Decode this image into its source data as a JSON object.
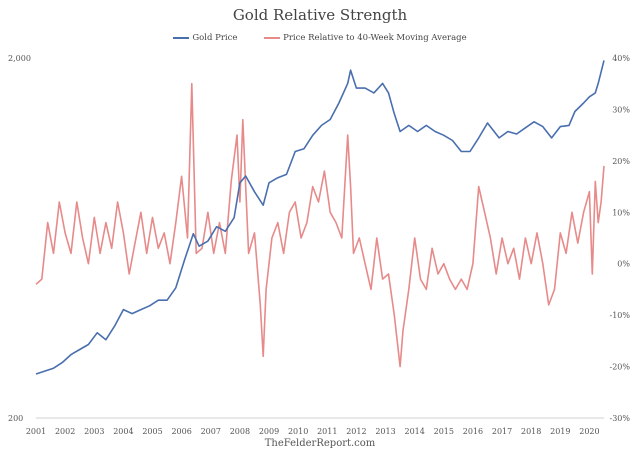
{
  "chart_data": {
    "type": "line",
    "title": "Gold Relative Strength",
    "footer": "TheFelderReport.com",
    "legend_position": "top",
    "x_ticks": [
      "2001",
      "2002",
      "2003",
      "2004",
      "2005",
      "2006",
      "2007",
      "2008",
      "2009",
      "2010",
      "2011",
      "2012",
      "2013",
      "2014",
      "2015",
      "2016",
      "2017",
      "2018",
      "2019",
      "2020"
    ],
    "x_range": [
      2001.0,
      2020.5
    ],
    "left_axis": {
      "scale": "log",
      "range": [
        200,
        2000
      ],
      "ticks": [
        {
          "value": 2000,
          "label": "2,000"
        },
        {
          "value": 200,
          "label": "200"
        }
      ]
    },
    "right_axis": {
      "scale": "linear",
      "range": [
        -30,
        40
      ],
      "ticks": [
        {
          "value": 40,
          "label": "40%"
        },
        {
          "value": 30,
          "label": "30%"
        },
        {
          "value": 20,
          "label": "20%"
        },
        {
          "value": 10,
          "label": "10%"
        },
        {
          "value": 0,
          "label": "0%"
        },
        {
          "value": -10,
          "label": "-10%"
        },
        {
          "value": -20,
          "label": "-20%"
        },
        {
          "value": -30,
          "label": "-30%"
        }
      ]
    },
    "series": [
      {
        "name": "Gold Price",
        "axis": "left",
        "color": "#4a6fae",
        "x": [
          2001.0,
          2001.3,
          2001.6,
          2001.9,
          2002.2,
          2002.5,
          2002.8,
          2003.1,
          2003.4,
          2003.7,
          2004.0,
          2004.3,
          2004.6,
          2004.9,
          2005.2,
          2005.5,
          2005.8,
          2006.1,
          2006.4,
          2006.6,
          2006.9,
          2007.2,
          2007.5,
          2007.8,
          2008.0,
          2008.2,
          2008.5,
          2008.8,
          2009.0,
          2009.3,
          2009.6,
          2009.9,
          2010.2,
          2010.5,
          2010.8,
          2011.1,
          2011.4,
          2011.7,
          2011.8,
          2012.0,
          2012.3,
          2012.6,
          2012.9,
          2013.1,
          2013.3,
          2013.5,
          2013.8,
          2014.1,
          2014.4,
          2014.7,
          2015.0,
          2015.3,
          2015.6,
          2015.9,
          2016.2,
          2016.5,
          2016.9,
          2017.2,
          2017.5,
          2017.8,
          2018.1,
          2018.4,
          2018.7,
          2019.0,
          2019.3,
          2019.5,
          2019.8,
          2020.0,
          2020.2,
          2020.3,
          2020.5
        ],
        "y": [
          265,
          270,
          275,
          285,
          300,
          310,
          320,
          345,
          330,
          360,
          400,
          390,
          400,
          410,
          425,
          425,
          460,
          550,
          650,
          600,
          620,
          680,
          660,
          720,
          900,
          940,
          850,
          780,
          900,
          930,
          950,
          1100,
          1120,
          1220,
          1300,
          1350,
          1500,
          1700,
          1850,
          1650,
          1650,
          1600,
          1700,
          1600,
          1400,
          1250,
          1300,
          1250,
          1300,
          1250,
          1220,
          1180,
          1100,
          1100,
          1200,
          1320,
          1200,
          1250,
          1230,
          1280,
          1330,
          1290,
          1200,
          1290,
          1300,
          1420,
          1500,
          1560,
          1600,
          1700,
          1970
        ]
      },
      {
        "name": "Price Relative to 40-Week Moving Average",
        "axis": "right",
        "color": "#e78a8a",
        "x": [
          2001.0,
          2001.2,
          2001.4,
          2001.6,
          2001.8,
          2002.0,
          2002.2,
          2002.4,
          2002.6,
          2002.8,
          2003.0,
          2003.2,
          2003.4,
          2003.6,
          2003.8,
          2004.0,
          2004.2,
          2004.4,
          2004.6,
          2004.8,
          2005.0,
          2005.2,
          2005.4,
          2005.6,
          2005.8,
          2006.0,
          2006.2,
          2006.35,
          2006.5,
          2006.7,
          2006.9,
          2007.1,
          2007.3,
          2007.5,
          2007.7,
          2007.9,
          2008.0,
          2008.1,
          2008.3,
          2008.5,
          2008.7,
          2008.8,
          2008.9,
          2009.1,
          2009.3,
          2009.5,
          2009.7,
          2009.9,
          2010.1,
          2010.3,
          2010.5,
          2010.7,
          2010.9,
          2011.1,
          2011.3,
          2011.5,
          2011.7,
          2011.8,
          2011.9,
          2012.1,
          2012.3,
          2012.5,
          2012.7,
          2012.9,
          2013.1,
          2013.3,
          2013.5,
          2013.6,
          2013.8,
          2014.0,
          2014.2,
          2014.4,
          2014.6,
          2014.8,
          2015.0,
          2015.2,
          2015.4,
          2015.6,
          2015.8,
          2016.0,
          2016.2,
          2016.4,
          2016.6,
          2016.8,
          2017.0,
          2017.2,
          2017.4,
          2017.6,
          2017.8,
          2018.0,
          2018.2,
          2018.4,
          2018.6,
          2018.8,
          2019.0,
          2019.2,
          2019.4,
          2019.6,
          2019.8,
          2020.0,
          2020.1,
          2020.2,
          2020.3,
          2020.4,
          2020.5
        ],
        "y": [
          -4,
          -3,
          8,
          2,
          12,
          6,
          2,
          12,
          5,
          0,
          9,
          2,
          8,
          3,
          12,
          6,
          -2,
          4,
          10,
          2,
          9,
          3,
          6,
          0,
          8,
          17,
          5,
          35,
          2,
          3,
          10,
          2,
          8,
          2,
          16,
          25,
          12,
          28,
          2,
          6,
          -8,
          -18,
          -5,
          5,
          8,
          2,
          10,
          12,
          5,
          8,
          15,
          12,
          18,
          10,
          8,
          5,
          25,
          15,
          2,
          5,
          0,
          -5,
          5,
          -3,
          -2,
          -10,
          -20,
          -13,
          -5,
          5,
          -3,
          -5,
          3,
          -2,
          0,
          -3,
          -5,
          -3,
          -5,
          0,
          15,
          10,
          5,
          -2,
          5,
          0,
          3,
          -3,
          5,
          0,
          6,
          0,
          -8,
          -5,
          6,
          2,
          10,
          4,
          10,
          14,
          -2,
          16,
          8,
          12,
          19
        ]
      }
    ]
  }
}
